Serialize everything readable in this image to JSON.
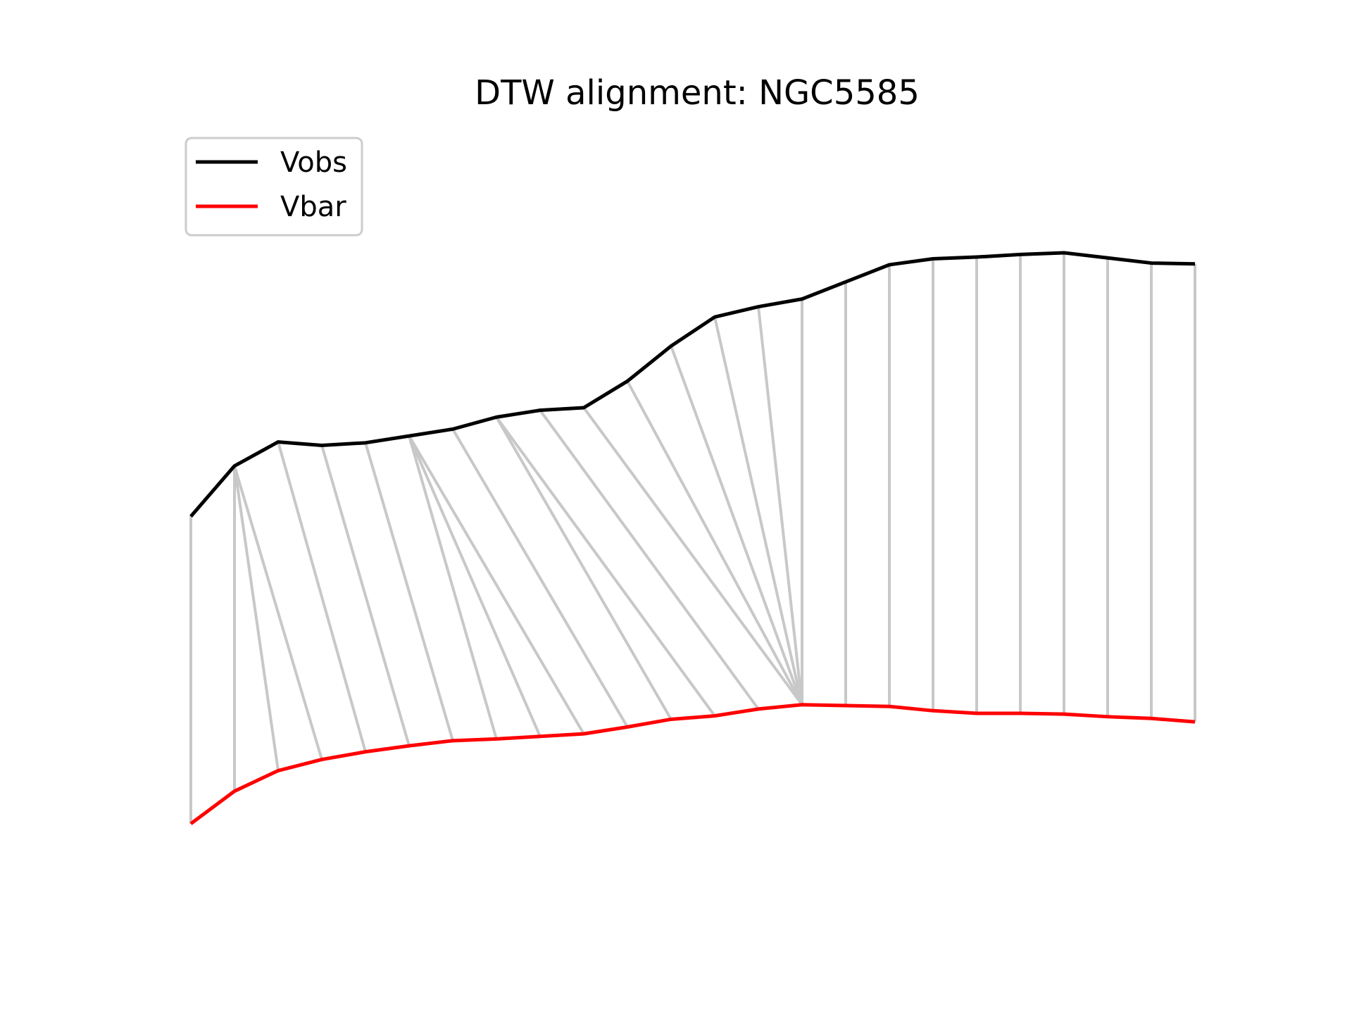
{
  "chart_data": {
    "type": "line",
    "title": "DTW alignment: NGC5585",
    "xlabel": "",
    "ylabel": "",
    "axes_visible": false,
    "grid": false,
    "legend_placement": "top-left",
    "x": [
      0,
      1,
      2,
      3,
      4,
      5,
      6,
      7,
      8,
      9,
      10,
      11,
      12,
      13,
      14,
      15,
      16,
      17,
      18,
      19,
      20,
      21,
      22,
      23
    ],
    "xlim": [
      -0.5,
      23.5
    ],
    "ylim": [
      0.1,
      1.0
    ],
    "series": [
      {
        "name": "Vobs",
        "color": "#000000",
        "values": [
          0.539,
          0.598,
          0.626,
          0.622,
          0.625,
          0.633,
          0.641,
          0.655,
          0.663,
          0.666,
          0.697,
          0.738,
          0.772,
          0.784,
          0.793,
          0.813,
          0.833,
          0.84,
          0.842,
          0.845,
          0.847,
          0.841,
          0.835,
          0.834
        ]
      },
      {
        "name": "Vbar",
        "color": "#ff0000",
        "values": [
          0.18,
          0.218,
          0.242,
          0.255,
          0.264,
          0.271,
          0.277,
          0.279,
          0.282,
          0.285,
          0.293,
          0.302,
          0.306,
          0.314,
          0.319,
          0.318,
          0.317,
          0.312,
          0.309,
          0.309,
          0.308,
          0.305,
          0.303,
          0.299
        ]
      }
    ],
    "alignment_color": "#c8c8c8",
    "alignment_path": [
      [
        0,
        0
      ],
      [
        1,
        1
      ],
      [
        1,
        2
      ],
      [
        1,
        3
      ],
      [
        2,
        4
      ],
      [
        3,
        5
      ],
      [
        4,
        6
      ],
      [
        5,
        7
      ],
      [
        5,
        8
      ],
      [
        5,
        9
      ],
      [
        6,
        10
      ],
      [
        7,
        11
      ],
      [
        7,
        12
      ],
      [
        8,
        13
      ],
      [
        9,
        14
      ],
      [
        10,
        14
      ],
      [
        11,
        14
      ],
      [
        12,
        14
      ],
      [
        13,
        14
      ],
      [
        14,
        14
      ],
      [
        15,
        15
      ],
      [
        16,
        16
      ],
      [
        17,
        17
      ],
      [
        18,
        18
      ],
      [
        19,
        19
      ],
      [
        20,
        20
      ],
      [
        21,
        21
      ],
      [
        22,
        22
      ],
      [
        23,
        23
      ]
    ]
  }
}
